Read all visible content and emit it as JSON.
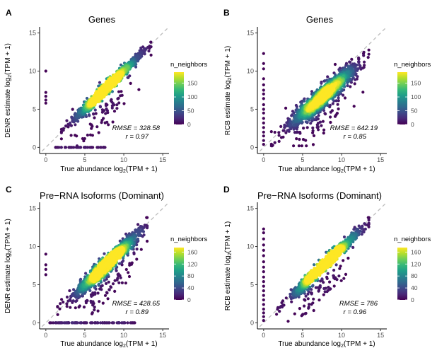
{
  "chart_data": [
    {
      "panel": "A",
      "type": "scatter",
      "title": "Genes",
      "xlabel": "True abundance log2(TPM + 1)",
      "ylabel": "DENR estimate log2(TPM + 1)",
      "xlim": [
        -0.8,
        15.8
      ],
      "ylim": [
        -0.8,
        15.8
      ],
      "xticks": [
        0,
        5,
        10,
        15
      ],
      "yticks": [
        0,
        5,
        10,
        15
      ],
      "reference_line": "y = x (dashed grey)",
      "annotations": {
        "rmse": "RMSE = 328.58",
        "r": "r = 0.97"
      },
      "color_scale": {
        "name": "n_neighbors",
        "palette": "viridis",
        "min": 0,
        "max": 190,
        "ticks": [
          0,
          50,
          100,
          150
        ]
      },
      "scatter_model": {
        "n": 1600,
        "x_mean": 7.8,
        "x_sd": 2.0,
        "x_range": [
          2.0,
          13.5
        ],
        "slope": 1.0,
        "noise_sd": 0.38,
        "zero_x_points": [
          5.8,
          6.2,
          6.7,
          7.2,
          10.0
        ],
        "zero_y_x_range": [
          1.0,
          7.6
        ],
        "zero_y_count": 45
      }
    },
    {
      "panel": "B",
      "type": "scatter",
      "title": "Genes",
      "xlabel": "True abundance log2(TPM + 1)",
      "ylabel": "RCB estimate log2(TPM + 1)",
      "xlim": [
        -0.8,
        15.8
      ],
      "ylim": [
        -0.8,
        15.8
      ],
      "xticks": [
        0,
        5,
        10,
        15
      ],
      "yticks": [
        0,
        5,
        10,
        15
      ],
      "reference_line": "y = x (dashed grey)",
      "annotations": {
        "rmse": "RMSE = 642.19",
        "r": "r = 0.85"
      },
      "color_scale": {
        "name": "n_neighbors",
        "palette": "viridis",
        "min": 0,
        "max": 190,
        "ticks": [
          0,
          50,
          100,
          150
        ]
      },
      "scatter_model": {
        "n": 1600,
        "x_mean": 7.6,
        "x_sd": 2.1,
        "x_range": [
          1.0,
          13.5
        ],
        "slope": 0.88,
        "noise_sd": 0.7,
        "zero_x_points": [
          0.4,
          0.9,
          1.5,
          2.0,
          2.6,
          3.2,
          3.8,
          4.5,
          5.0,
          5.6,
          6.4,
          7.0,
          7.5,
          8.2,
          9.0,
          10.3,
          11.0,
          12.3
        ],
        "zero_y_x_range": [],
        "zero_y_count": 0
      }
    },
    {
      "panel": "C",
      "type": "scatter",
      "title": "Pre−RNA Isoforms (Dominant)",
      "xlabel": "True abundance log2(TPM + 1)",
      "ylabel": "DENR estimate log2(TPM + 1)",
      "xlim": [
        -0.8,
        15.8
      ],
      "ylim": [
        -0.8,
        15.8
      ],
      "xticks": [
        0,
        5,
        10,
        15
      ],
      "yticks": [
        0,
        5,
        10,
        15
      ],
      "reference_line": "y = x (dashed grey)",
      "annotations": {
        "rmse": "RMSE = 428.65",
        "r": "r = 0.89"
      },
      "color_scale": {
        "name": "n_neighbors",
        "palette": "viridis",
        "min": 0,
        "max": 175,
        "ticks": [
          0,
          40,
          80,
          120,
          160
        ]
      },
      "scatter_model": {
        "n": 1700,
        "x_mean": 7.8,
        "x_sd": 2.0,
        "x_range": [
          1.5,
          13.0
        ],
        "slope": 0.98,
        "noise_sd": 0.55,
        "zero_x_points": [
          6.3,
          7.0,
          7.6,
          9.0
        ],
        "zero_y_x_range": [
          0.5,
          11.5
        ],
        "zero_y_count": 90
      }
    },
    {
      "panel": "D",
      "type": "scatter",
      "title": "Pre−RNA Isoforms (Dominant)",
      "xlabel": "True abundance log2(TPM + 1)",
      "ylabel": "RCB estimate log2(TPM + 1)",
      "xlim": [
        -0.8,
        15.8
      ],
      "ylim": [
        -0.8,
        15.8
      ],
      "xticks": [
        0,
        5,
        10,
        15
      ],
      "yticks": [
        0,
        5,
        10,
        15
      ],
      "reference_line": "y = x (dashed grey)",
      "annotations": {
        "rmse": "RMSE = 786",
        "r": "r = 0.96"
      },
      "color_scale": {
        "name": "n_neighbors",
        "palette": "viridis",
        "min": 0,
        "max": 175,
        "ticks": [
          0,
          40,
          80,
          120,
          160
        ]
      },
      "scatter_model": {
        "n": 1700,
        "x_mean": 7.8,
        "x_sd": 2.0,
        "x_range": [
          1.0,
          13.5
        ],
        "slope": 0.98,
        "noise_sd": 0.4,
        "zero_x_points": [
          0.3,
          0.8,
          1.3,
          1.8,
          2.4,
          3.0,
          3.6,
          4.2,
          4.8,
          5.4,
          6.0,
          6.7,
          7.3,
          8.0,
          8.8,
          9.5,
          10.2,
          11.0,
          11.8,
          12.3
        ],
        "zero_y_x_range": [],
        "zero_y_count": 0
      }
    }
  ],
  "colors": {
    "viridis": [
      "#440154",
      "#482878",
      "#3e4989",
      "#31688e",
      "#26828e",
      "#1f9e89",
      "#35b779",
      "#6ece58",
      "#b5de2b",
      "#fde725"
    ],
    "reference_line": "#bdbdbd",
    "axis": "#000000"
  }
}
